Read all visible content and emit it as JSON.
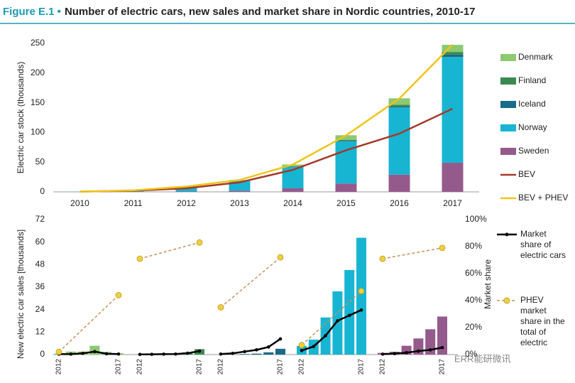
{
  "header": {
    "label": "Figure E.1 •",
    "title": "Number of electric cars, new sales and market share in Nordic countries, 2010-17"
  },
  "watermark": "ERR能研微讯",
  "chart_data": [
    {
      "type": "stacked_bar_line",
      "ylabel": "Electric car stock (thousands)",
      "categories": [
        "2010",
        "2011",
        "2012",
        "2013",
        "2014",
        "2015",
        "2016",
        "2017"
      ],
      "ylim": [
        0,
        250
      ],
      "yticks": [
        0,
        50,
        100,
        150,
        200,
        250
      ],
      "legend": "right",
      "series": [
        {
          "name": "Denmark",
          "kind": "bar",
          "color": "#8dc971",
          "values": [
            0.1,
            0.6,
            1.4,
            1.6,
            3.0,
            8.0,
            11.0,
            12.0
          ]
        },
        {
          "name": "Finland",
          "kind": "bar",
          "color": "#3a8a4e",
          "values": [
            0,
            0,
            0.1,
            0.3,
            0.5,
            1.3,
            2.5,
            4.5
          ]
        },
        {
          "name": "Iceland",
          "kind": "bar",
          "color": "#1a6a8a",
          "values": [
            0,
            0,
            0,
            0.1,
            0.5,
            1.0,
            2.0,
            4.0
          ]
        },
        {
          "name": "Norway",
          "kind": "bar",
          "color": "#17b5d2",
          "values": [
            0.3,
            1.9,
            7.0,
            16.0,
            36.0,
            71.0,
            113.0,
            178.0
          ]
        },
        {
          "name": "Sweden",
          "kind": "bar",
          "color": "#955a8c",
          "values": [
            0,
            0.2,
            0.6,
            2.0,
            6.0,
            14.0,
            29.0,
            49.0
          ]
        },
        {
          "name": "BEV",
          "kind": "line",
          "color": "#a33a2a",
          "values": [
            0.4,
            2,
            6,
            16,
            37,
            70,
            98,
            140
          ]
        },
        {
          "name": "BEV + PHEV",
          "kind": "line",
          "color": "#f0c419",
          "values": [
            0.4,
            2.5,
            9,
            20,
            46,
            95,
            157,
            248
          ]
        }
      ]
    },
    {
      "type": "grouped_bar_line",
      "ylabel": "New electric car sales [thousands]",
      "y2label": "Market share",
      "categories": [
        "2012",
        null,
        null,
        null,
        null,
        "2017"
      ],
      "ylim": [
        0,
        72
      ],
      "yticks": [
        0,
        12,
        24,
        36,
        48,
        60,
        72
      ],
      "y2lim": [
        0,
        100
      ],
      "y2ticks": [
        {
          "value": 0,
          "label": "0%"
        },
        {
          "value": 20,
          "label": "20%"
        },
        {
          "value": 40,
          "label": "40%"
        },
        {
          "value": 60,
          "label": "60%"
        },
        {
          "value": 80,
          "label": "80%"
        },
        {
          "value": 100,
          "label": "100%"
        }
      ],
      "series": [
        {
          "name": "Market share of electric cars",
          "color": "#000000",
          "axis": "y2"
        },
        {
          "name": "PHEV market share in the total of electric",
          "color": "#c8915a",
          "marker_color": "#f0d040",
          "axis": "y2",
          "dashed": true
        }
      ],
      "groups": [
        {
          "color": "#8dc971",
          "values": [
            0.5,
            1.6,
            1.6,
            4.7,
            1.4,
            0.7
          ],
          "share": [
            0.3,
            0.3,
            0.9,
            2.2,
            0.6,
            0.4
          ],
          "phev_share": [
            2,
            44
          ]
        },
        {
          "color": "#3a8a4e",
          "values": [
            0.1,
            0.2,
            0.3,
            0.5,
            1.2,
            2.9
          ],
          "share": [
            0.1,
            0.2,
            0.3,
            0.4,
            1.0,
            2.6
          ],
          "phev_share": [
            71,
            83
          ]
        },
        {
          "color": "#1a6a8a",
          "values": [
            0,
            0.1,
            0.3,
            0.5,
            1.2,
            3.1
          ],
          "share": [
            0.4,
            0.9,
            2.2,
            3.5,
            5.6,
            11.6
          ],
          "phev_share": [
            35,
            72
          ]
        },
        {
          "color": "#17b5d2",
          "values": [
            4.6,
            8.0,
            19.8,
            33.7,
            45.1,
            62.3
          ],
          "share": [
            3,
            6,
            14,
            25,
            29,
            33
          ],
          "phev_share": [
            7,
            47
          ]
        },
        {
          "color": "#955a8c",
          "values": [
            0.9,
            1.5,
            4.7,
            8.6,
            13.5,
            20.3
          ],
          "share": [
            0.3,
            0.7,
            1.4,
            2.6,
            3.5,
            5.2
          ],
          "phev_share": [
            71,
            79
          ]
        }
      ]
    }
  ]
}
